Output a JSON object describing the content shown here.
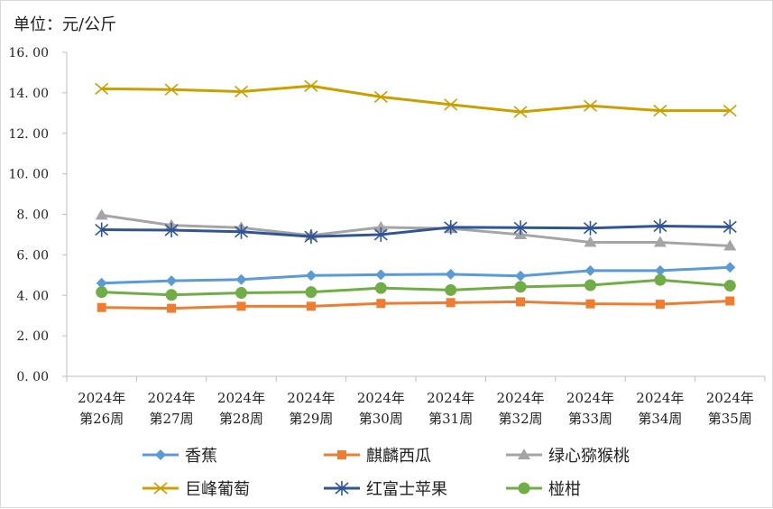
{
  "unit_label": "单位：元/公斤",
  "chart_data": {
    "type": "line",
    "categories": [
      [
        "2024年",
        "第26周"
      ],
      [
        "2024年",
        "第27周"
      ],
      [
        "2024年",
        "第28周"
      ],
      [
        "2024年",
        "第29周"
      ],
      [
        "2024年",
        "第30周"
      ],
      [
        "2024年",
        "第31周"
      ],
      [
        "2024年",
        "第32周"
      ],
      [
        "2024年",
        "第33周"
      ],
      [
        "2024年",
        "第34周"
      ],
      [
        "2024年",
        "第35周"
      ]
    ],
    "yticks": [
      "0. 00",
      "2. 00",
      "4. 00",
      "6. 00",
      "8. 00",
      "10. 00",
      "12. 00",
      "14. 00",
      "16. 00"
    ],
    "ylim": [
      0,
      16
    ],
    "grid": false,
    "legend_position": "bottom",
    "series": [
      {
        "name": "香蕉",
        "color": "#5b9bd5",
        "marker": "diamond",
        "values": [
          4.6,
          4.72,
          4.78,
          4.98,
          5.02,
          5.04,
          4.96,
          5.22,
          5.22,
          5.38
        ]
      },
      {
        "name": "麒麟西瓜",
        "color": "#ed7d31",
        "marker": "square",
        "values": [
          3.4,
          3.36,
          3.46,
          3.46,
          3.6,
          3.64,
          3.68,
          3.58,
          3.56,
          3.72
        ]
      },
      {
        "name": "绿心猕猴桃",
        "color": "#a5a5a5",
        "marker": "triangle",
        "values": [
          7.96,
          7.46,
          7.34,
          6.96,
          7.36,
          7.3,
          7.0,
          6.62,
          6.62,
          6.44
        ]
      },
      {
        "name": "巨峰葡萄",
        "color": "#c9a000",
        "marker": "x",
        "values": [
          14.2,
          14.16,
          14.06,
          14.34,
          13.8,
          13.42,
          13.06,
          13.36,
          13.12,
          13.12
        ]
      },
      {
        "name": "红富士苹果",
        "color": "#2f5597",
        "marker": "star",
        "values": [
          7.24,
          7.22,
          7.14,
          6.9,
          7.0,
          7.36,
          7.34,
          7.32,
          7.42,
          7.38
        ]
      },
      {
        "name": "椪柑",
        "color": "#70ad47",
        "marker": "circle",
        "values": [
          4.16,
          4.02,
          4.12,
          4.16,
          4.36,
          4.26,
          4.42,
          4.5,
          4.76,
          4.48
        ]
      }
    ]
  }
}
